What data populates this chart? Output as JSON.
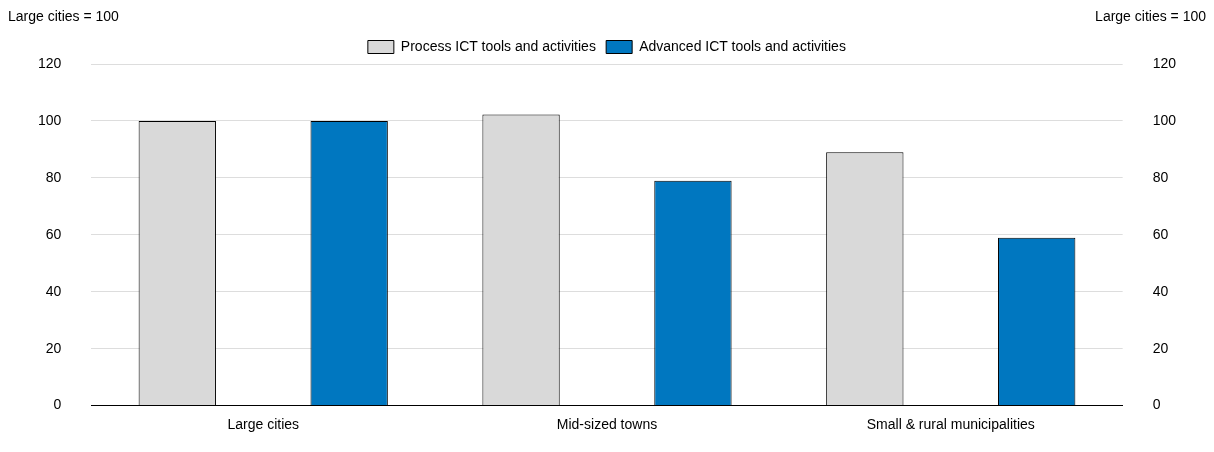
{
  "chart_data": {
    "type": "bar",
    "ylabel": "Large cities = 100",
    "y2label": "Large cities = 100",
    "categories": [
      "Large cities",
      "Mid-sized towns",
      "Small & rural municipalities"
    ],
    "series": [
      {
        "name": "Process ICT tools and activities",
        "color": "#d9d9d9",
        "values": [
          100,
          102.3,
          89
        ]
      },
      {
        "name": "Advanced ICT tools and activities",
        "color": "#0077c0",
        "values": [
          100,
          79,
          59
        ]
      }
    ],
    "ylim": [
      0,
      120
    ],
    "yticks": [
      0,
      20,
      40,
      60,
      80,
      100,
      120
    ],
    "y2lim": [
      0,
      120
    ],
    "y2ticks": [
      0,
      20,
      40,
      60,
      80,
      100,
      120
    ],
    "grid": "y",
    "legend": "top"
  }
}
